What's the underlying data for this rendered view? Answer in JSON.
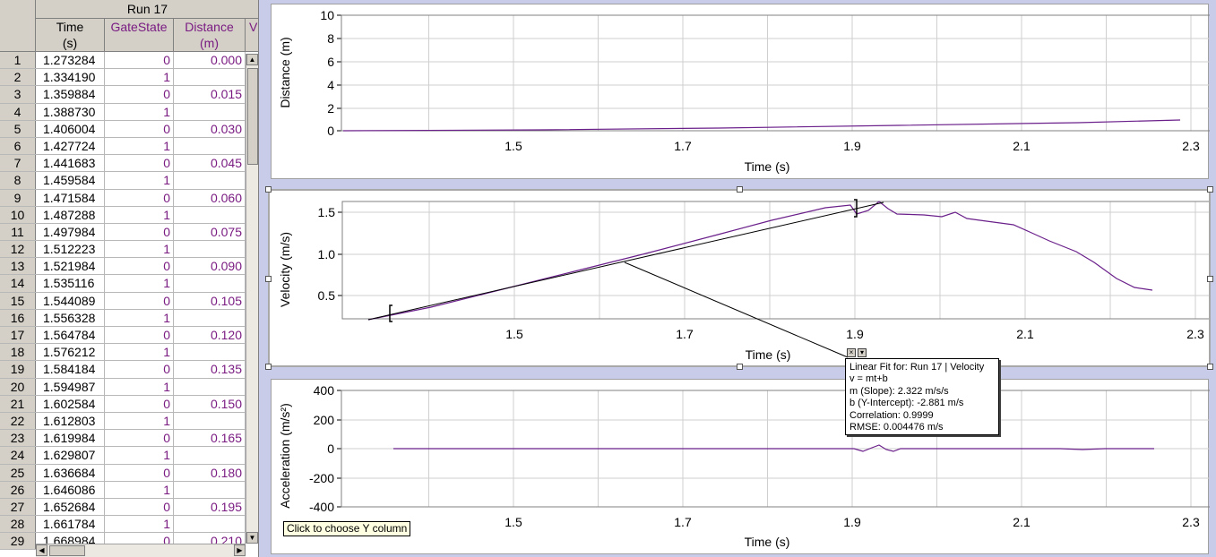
{
  "table": {
    "run_title": "Run 17",
    "columns": [
      {
        "name": "Time",
        "unit": "(s)"
      },
      {
        "name": "GateState",
        "unit": ""
      },
      {
        "name": "Distance",
        "unit": "(m)"
      },
      {
        "name": "V",
        "unit": ""
      }
    ],
    "rows": [
      {
        "n": "1",
        "time": "1.273284",
        "gate": "0",
        "dist": "0.000"
      },
      {
        "n": "2",
        "time": "1.334190",
        "gate": "1",
        "dist": ""
      },
      {
        "n": "3",
        "time": "1.359884",
        "gate": "0",
        "dist": "0.015"
      },
      {
        "n": "4",
        "time": "1.388730",
        "gate": "1",
        "dist": ""
      },
      {
        "n": "5",
        "time": "1.406004",
        "gate": "0",
        "dist": "0.030"
      },
      {
        "n": "6",
        "time": "1.427724",
        "gate": "1",
        "dist": ""
      },
      {
        "n": "7",
        "time": "1.441683",
        "gate": "0",
        "dist": "0.045"
      },
      {
        "n": "8",
        "time": "1.459584",
        "gate": "1",
        "dist": ""
      },
      {
        "n": "9",
        "time": "1.471584",
        "gate": "0",
        "dist": "0.060"
      },
      {
        "n": "10",
        "time": "1.487288",
        "gate": "1",
        "dist": ""
      },
      {
        "n": "11",
        "time": "1.497984",
        "gate": "0",
        "dist": "0.075"
      },
      {
        "n": "12",
        "time": "1.512223",
        "gate": "1",
        "dist": ""
      },
      {
        "n": "13",
        "time": "1.521984",
        "gate": "0",
        "dist": "0.090"
      },
      {
        "n": "14",
        "time": "1.535116",
        "gate": "1",
        "dist": ""
      },
      {
        "n": "15",
        "time": "1.544089",
        "gate": "0",
        "dist": "0.105"
      },
      {
        "n": "16",
        "time": "1.556328",
        "gate": "1",
        "dist": ""
      },
      {
        "n": "17",
        "time": "1.564784",
        "gate": "0",
        "dist": "0.120"
      },
      {
        "n": "18",
        "time": "1.576212",
        "gate": "1",
        "dist": ""
      },
      {
        "n": "19",
        "time": "1.584184",
        "gate": "0",
        "dist": "0.135"
      },
      {
        "n": "20",
        "time": "1.594987",
        "gate": "1",
        "dist": ""
      },
      {
        "n": "21",
        "time": "1.602584",
        "gate": "0",
        "dist": "0.150"
      },
      {
        "n": "22",
        "time": "1.612803",
        "gate": "1",
        "dist": ""
      },
      {
        "n": "23",
        "time": "1.619984",
        "gate": "0",
        "dist": "0.165"
      },
      {
        "n": "24",
        "time": "1.629807",
        "gate": "1",
        "dist": ""
      },
      {
        "n": "25",
        "time": "1.636684",
        "gate": "0",
        "dist": "0.180"
      },
      {
        "n": "26",
        "time": "1.646086",
        "gate": "1",
        "dist": ""
      },
      {
        "n": "27",
        "time": "1.652684",
        "gate": "0",
        "dist": "0.195"
      },
      {
        "n": "28",
        "time": "1.661784",
        "gate": "1",
        "dist": ""
      },
      {
        "n": "29",
        "time": "1.668984",
        "gate": "0",
        "dist": "0.210"
      }
    ]
  },
  "graphs": {
    "x_axis_label": "Time (s)",
    "x_ticks": [
      "1.5",
      "1.7",
      "1.9",
      "2.1",
      "2.3"
    ],
    "distance": {
      "ylabel": "Distance (m)",
      "y_ticks": [
        "10",
        "8",
        "6",
        "4",
        "2",
        "0"
      ]
    },
    "velocity": {
      "ylabel": "Velocity (m/s)",
      "y_ticks": [
        "1.5",
        "1.0",
        "0.5"
      ]
    },
    "acceleration": {
      "ylabel": "Acceleration (m/s²)",
      "y_ticks": [
        "400",
        "200",
        "0",
        "-200",
        "-400"
      ]
    }
  },
  "fit_box": {
    "line1": "Linear Fit for: Run 17 | Velocity",
    "line2": "v = mt+b",
    "line3": "m (Slope): 2.322 m/s/s",
    "line4": "b (Y-Intercept): -2.881 m/s",
    "line5": "Correlation: 0.9999",
    "line6": "RMSE: 0.004476 m/s"
  },
  "tooltip": "Click to choose Y column",
  "colors": {
    "series": "#6a1f8a",
    "fit": "#000000",
    "grid": "#c8c8c8",
    "background": "#c8cce8"
  }
}
